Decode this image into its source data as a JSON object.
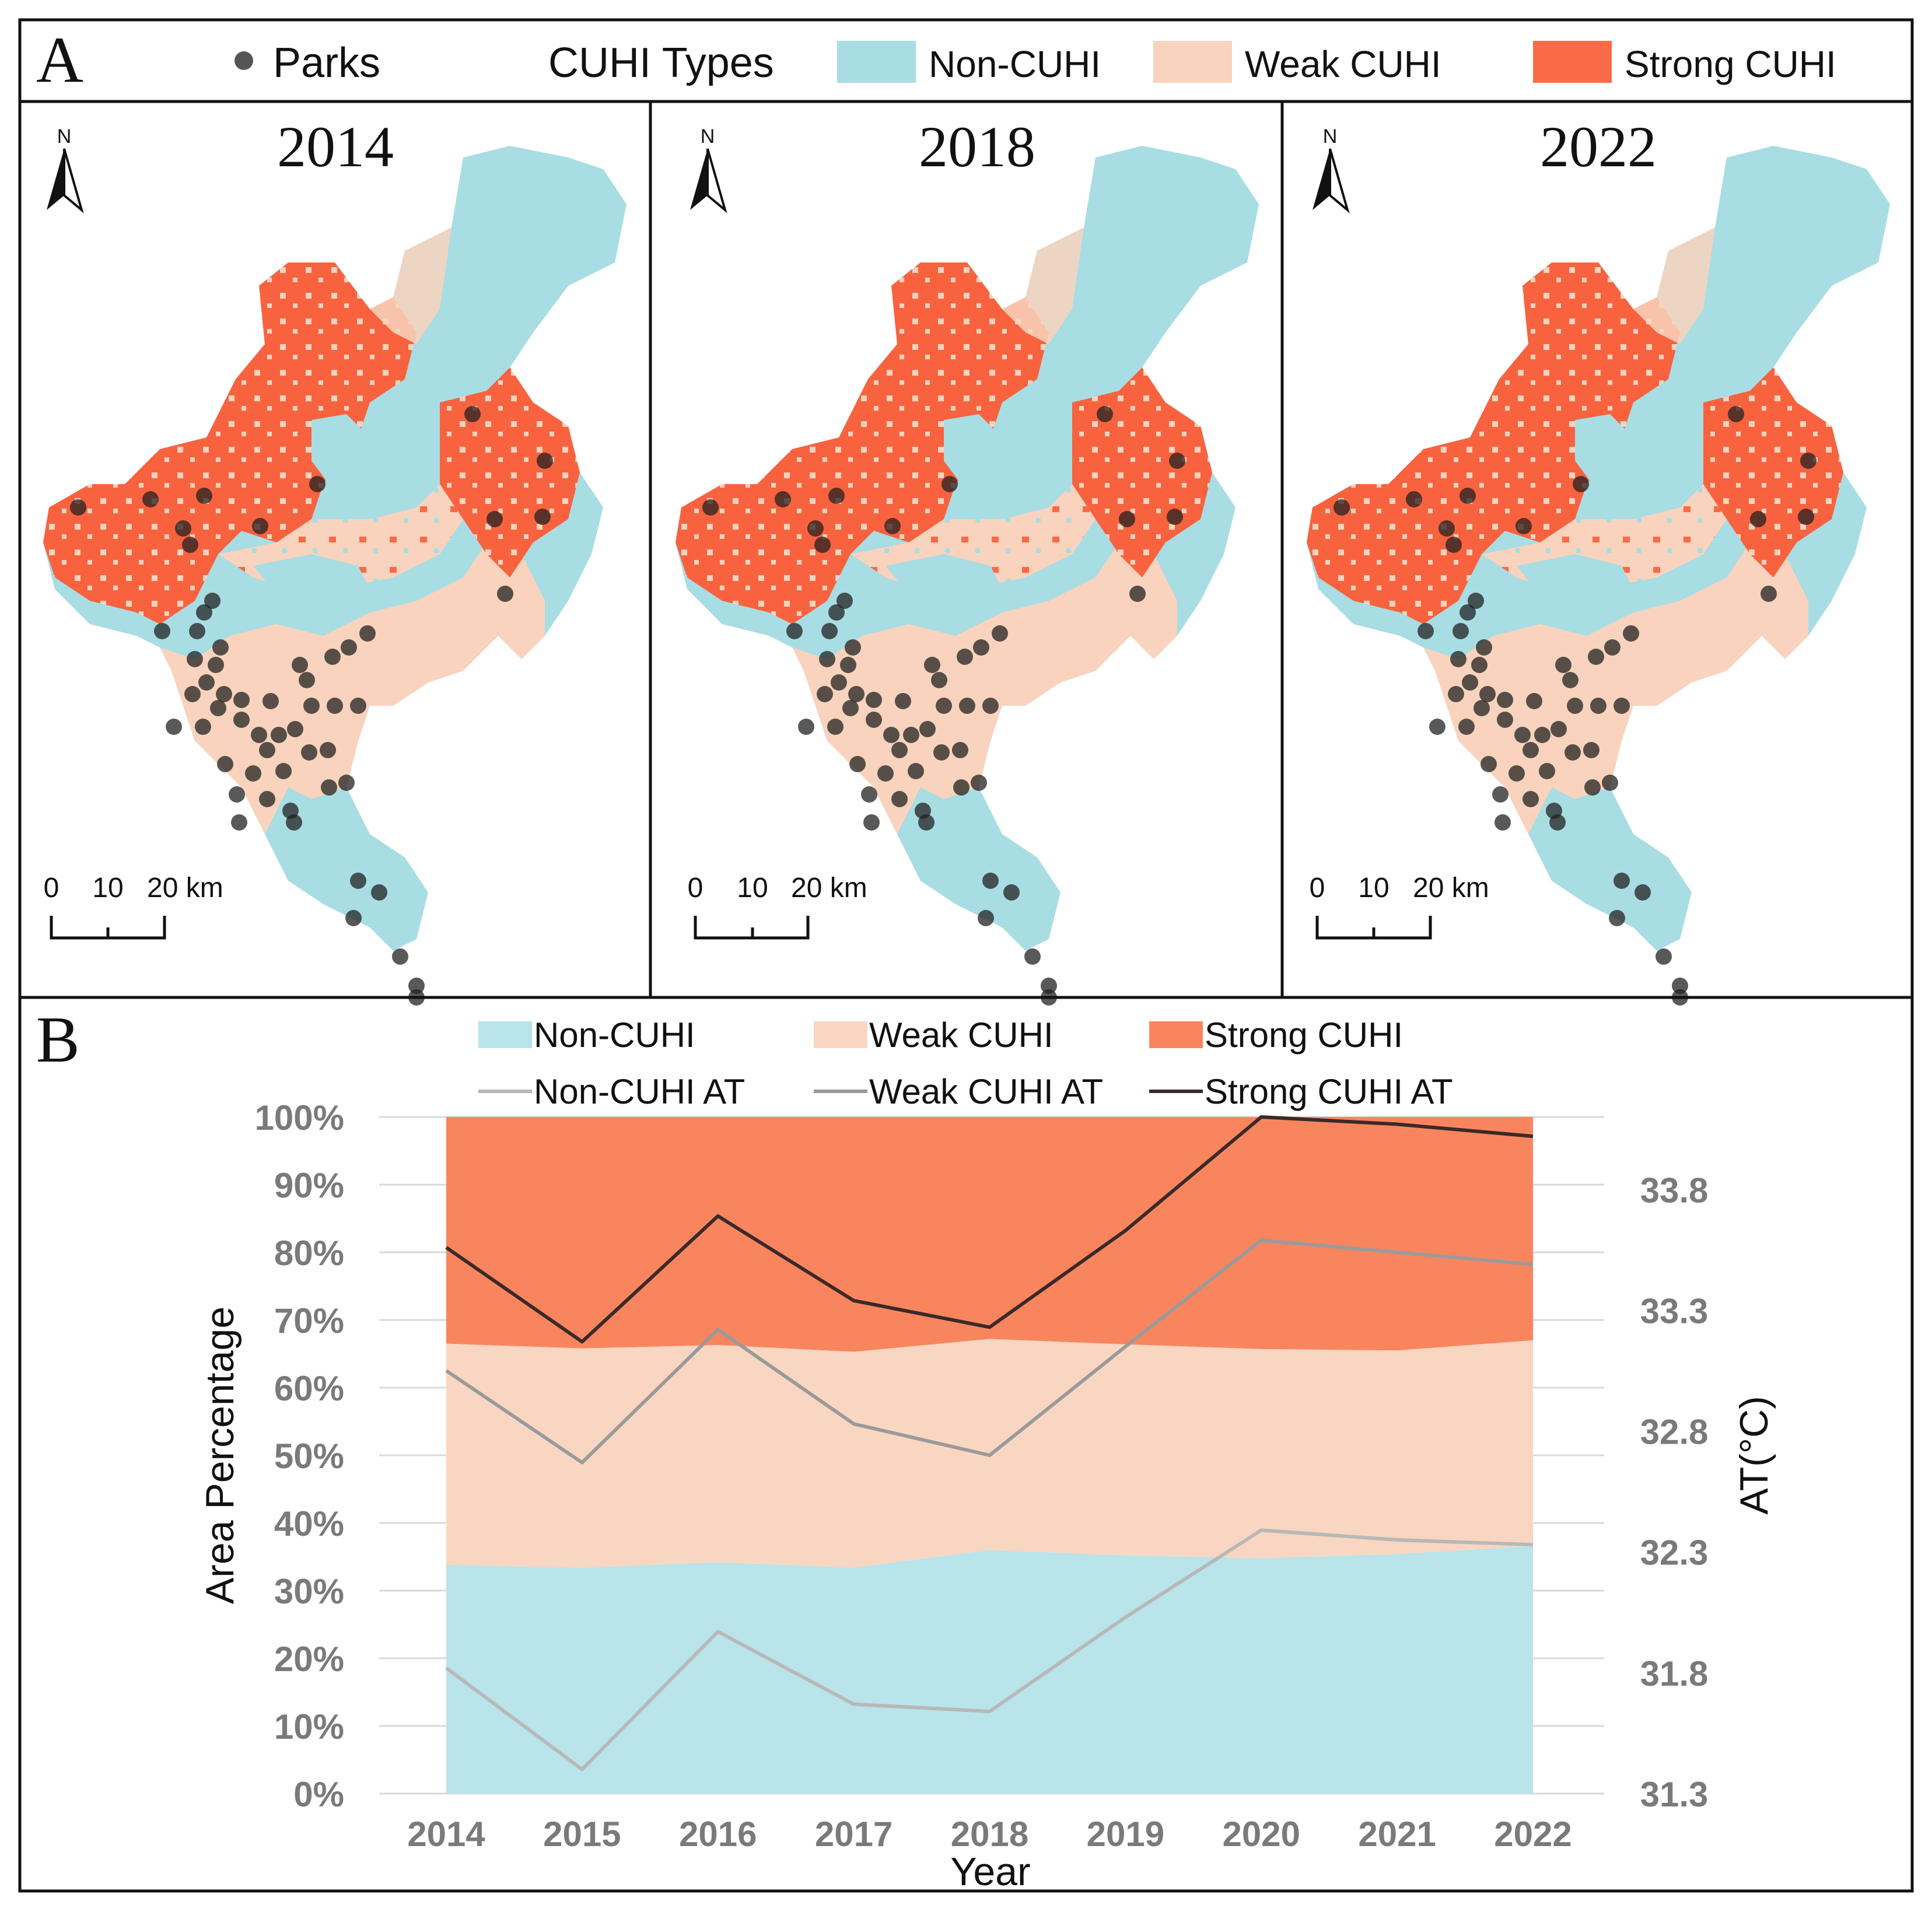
{
  "panel_a": {
    "label": "A",
    "legend": {
      "parks_label": "Parks",
      "types_title": "CUHI Types",
      "items": [
        {
          "label": "Non-CUHI",
          "color": "#a8dde3"
        },
        {
          "label": "Weak CUHI",
          "color": "#f9d3bd"
        },
        {
          "label": "Strong CUHI",
          "color": "#f96a47"
        }
      ]
    },
    "maps": [
      {
        "year": "2014",
        "north": "N",
        "scale": {
          "t0": "0",
          "t1": "10",
          "t2": "20 km"
        }
      },
      {
        "year": "2018",
        "north": "N",
        "scale": {
          "t0": "0",
          "t1": "10",
          "t2": "20 km"
        }
      },
      {
        "year": "2022",
        "north": "N",
        "scale": {
          "t0": "0",
          "t1": "10",
          "t2": "20 km"
        }
      }
    ]
  },
  "panel_b": {
    "label": "B"
  },
  "chart_data": {
    "type": "area",
    "x": [
      "2014",
      "2015",
      "2016",
      "2017",
      "2018",
      "2019",
      "2020",
      "2021",
      "2022"
    ],
    "xlabel": "Year",
    "ylabel": "Area Percentage",
    "y2label": "AT(°C)",
    "ylim": [
      0,
      100
    ],
    "y_ticks": [
      "0%",
      "10%",
      "20%",
      "30%",
      "40%",
      "50%",
      "60%",
      "70%",
      "80%",
      "90%",
      "100%"
    ],
    "y2lim": [
      31.3,
      34.1
    ],
    "y2_ticks": [
      "31.3",
      "31.8",
      "32.3",
      "32.8",
      "33.3",
      "33.8"
    ],
    "legend": [
      {
        "label": "Non-CUHI",
        "kind": "area"
      },
      {
        "label": "Weak CUHI",
        "kind": "area"
      },
      {
        "label": "Strong CUHI",
        "kind": "area"
      },
      {
        "label": "Non-CUHI AT",
        "kind": "line"
      },
      {
        "label": "Weak CUHI AT",
        "kind": "line"
      },
      {
        "label": "Strong CUHI AT",
        "kind": "line"
      }
    ],
    "area_series": [
      {
        "name": "Non-CUHI",
        "color": "#b8e4ea",
        "values": [
          33.8,
          33.4,
          34.2,
          33.4,
          36.0,
          35.2,
          34.8,
          35.4,
          36.6
        ]
      },
      {
        "name": "Weak CUHI",
        "color": "#f9d6c2",
        "values": [
          32.7,
          32.4,
          32.1,
          31.9,
          31.2,
          31.2,
          30.9,
          30.1,
          30.4
        ]
      },
      {
        "name": "Strong CUHI",
        "color": "#f9855f",
        "values": [
          33.5,
          34.2,
          33.7,
          34.7,
          32.8,
          33.6,
          34.3,
          34.5,
          33.0
        ]
      }
    ],
    "line_series": [
      {
        "name": "Non-CUHI AT",
        "color": "#b8b8b8",
        "values": [
          31.82,
          31.4,
          31.97,
          31.67,
          31.64,
          32.03,
          32.39,
          32.35,
          32.33
        ]
      },
      {
        "name": "Weak CUHI AT",
        "color": "#9a9a9a",
        "values": [
          33.05,
          32.67,
          33.22,
          32.83,
          32.7,
          33.15,
          33.59,
          33.54,
          33.49
        ]
      },
      {
        "name": "Strong CUHI AT",
        "color": "#3a2a28",
        "values": [
          33.56,
          33.17,
          33.69,
          33.34,
          33.23,
          33.63,
          34.1,
          34.07,
          34.02
        ]
      }
    ]
  }
}
